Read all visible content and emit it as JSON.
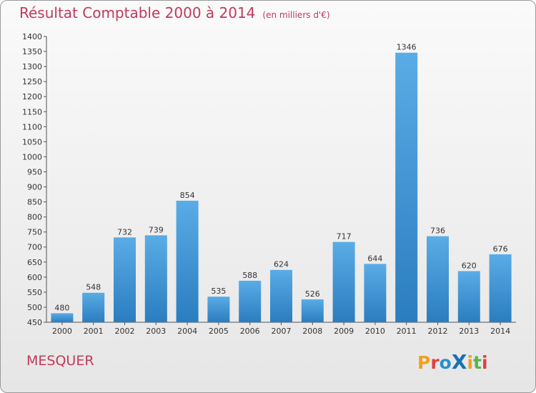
{
  "title": "Résultat Comptable 2000 à 2014",
  "unit": "(en milliers d'€)",
  "commune": "MESQUER",
  "logo": "Proxiti",
  "colors": {
    "title": "#c03a5a",
    "bar_top": "#5aace6",
    "bar_bottom": "#2a7dbf",
    "axis": "#555555"
  },
  "chart_data": {
    "type": "bar",
    "title": "Résultat Comptable 2000 à 2014",
    "subtitle": "(en milliers d'€)",
    "xlabel": "",
    "ylabel": "",
    "categories": [
      "2000",
      "2001",
      "2002",
      "2003",
      "2004",
      "2005",
      "2006",
      "2007",
      "2008",
      "2009",
      "2010",
      "2011",
      "2012",
      "2013",
      "2014"
    ],
    "values": [
      480,
      548,
      732,
      739,
      854,
      535,
      588,
      624,
      526,
      717,
      644,
      1346,
      736,
      620,
      676
    ],
    "ylim": [
      450,
      1400
    ],
    "yticks": [
      450,
      500,
      550,
      600,
      650,
      700,
      750,
      800,
      850,
      900,
      950,
      1000,
      1050,
      1100,
      1150,
      1200,
      1250,
      1300,
      1350,
      1400
    ],
    "grid": false,
    "legend": "none"
  }
}
